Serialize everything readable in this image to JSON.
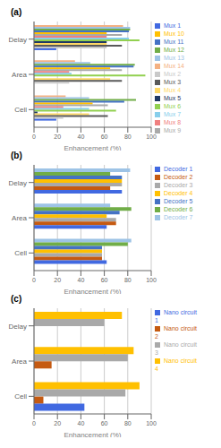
{
  "chart_data": [
    {
      "type": "bar",
      "orientation": "horizontal",
      "title": "(a)",
      "xlabel": "Enhancement (%)",
      "categories": [
        "Cell",
        "Area",
        "Delay"
      ],
      "xlim": [
        0,
        100
      ],
      "xticks": [
        0,
        20,
        40,
        60,
        80,
        100
      ],
      "grid": true,
      "legend": "right",
      "series": [
        {
          "name": "Mux 14",
          "color": "#f4b183",
          "values": [
            27,
            35,
            76
          ]
        },
        {
          "name": "Mux 13",
          "color": "#9dc3e6",
          "values": [
            47,
            48,
            82
          ]
        },
        {
          "name": "Mux 12",
          "color": "#70ad47",
          "values": [
            87,
            86,
            82
          ]
        },
        {
          "name": "Mux 11",
          "color": "#4472c4",
          "values": [
            77,
            85,
            81
          ]
        },
        {
          "name": "Mux 10",
          "color": "#ffc000",
          "values": [
            50,
            65,
            62
          ]
        },
        {
          "name": "Mux 9",
          "color": "#a9a9a9",
          "values": [
            63,
            75,
            75
          ]
        },
        {
          "name": "Mux 8",
          "color": "#f08080",
          "values": [
            25,
            30,
            62
          ]
        },
        {
          "name": "Mux 7",
          "color": "#87ceeb",
          "values": [
            47,
            32,
            81
          ]
        },
        {
          "name": "Mux 6",
          "color": "#92d050",
          "values": [
            70,
            95,
            90
          ]
        },
        {
          "name": "Mux 5",
          "color": "#1f3864",
          "values": [
            3,
            0,
            62
          ]
        },
        {
          "name": "Mux 4",
          "color": "#ffd966",
          "values": [
            47,
            65,
            62
          ]
        },
        {
          "name": "Mux 3",
          "color": "#595959",
          "values": [
            63,
            75,
            75
          ]
        },
        {
          "name": "Mux 2",
          "color": "#c9c9c9",
          "values": [
            25,
            30,
            62
          ]
        },
        {
          "name": "Mux 1",
          "color": "#4169e1",
          "values": [
            19,
            0,
            19
          ]
        }
      ]
    },
    {
      "type": "bar",
      "orientation": "horizontal",
      "title": "(b)",
      "xlabel": "Enhancement (%)",
      "categories": [
        "Cell",
        "Area",
        "Delay"
      ],
      "xlim": [
        0,
        100
      ],
      "xticks": [
        0,
        20,
        40,
        60,
        80,
        100
      ],
      "grid": true,
      "legend": "right",
      "series": [
        {
          "name": "Decoder 7",
          "color": "#9dc3e6",
          "values": [
            83,
            65,
            82
          ]
        },
        {
          "name": "Decoder 6",
          "color": "#70ad47",
          "values": [
            80,
            83,
            65
          ]
        },
        {
          "name": "Decoder 5",
          "color": "#4472c4",
          "values": [
            58,
            73,
            75
          ]
        },
        {
          "name": "Decoder 4",
          "color": "#ffc000",
          "values": [
            58,
            62,
            75
          ]
        },
        {
          "name": "Decoder 3",
          "color": "#a9a9a9",
          "values": [
            58,
            70,
            75
          ]
        },
        {
          "name": "Decoder 2",
          "color": "#c55a11",
          "values": [
            58,
            70,
            65
          ]
        },
        {
          "name": "Decoder 1",
          "color": "#4169e1",
          "values": [
            62,
            62,
            75
          ]
        }
      ]
    },
    {
      "type": "bar",
      "orientation": "horizontal",
      "title": "(c)",
      "xlabel": "Enhancement (%)",
      "categories": [
        "Cell",
        "Area",
        "Delay"
      ],
      "xlim": [
        0,
        100
      ],
      "xticks": [
        0,
        20,
        40,
        60,
        80,
        100
      ],
      "grid": true,
      "legend": "right",
      "series": [
        {
          "name": "Nano circuit 4",
          "color": "#ffc000",
          "values": [
            90,
            85,
            75
          ]
        },
        {
          "name": "Nano circuit 3",
          "color": "#a9a9a9",
          "values": [
            78,
            80,
            60
          ]
        },
        {
          "name": "Nano circuit 2",
          "color": "#c55a11",
          "values": [
            8,
            15,
            0
          ]
        },
        {
          "name": "Nano circuit 1",
          "color": "#4169e1",
          "values": [
            43,
            0,
            0
          ]
        }
      ]
    }
  ]
}
